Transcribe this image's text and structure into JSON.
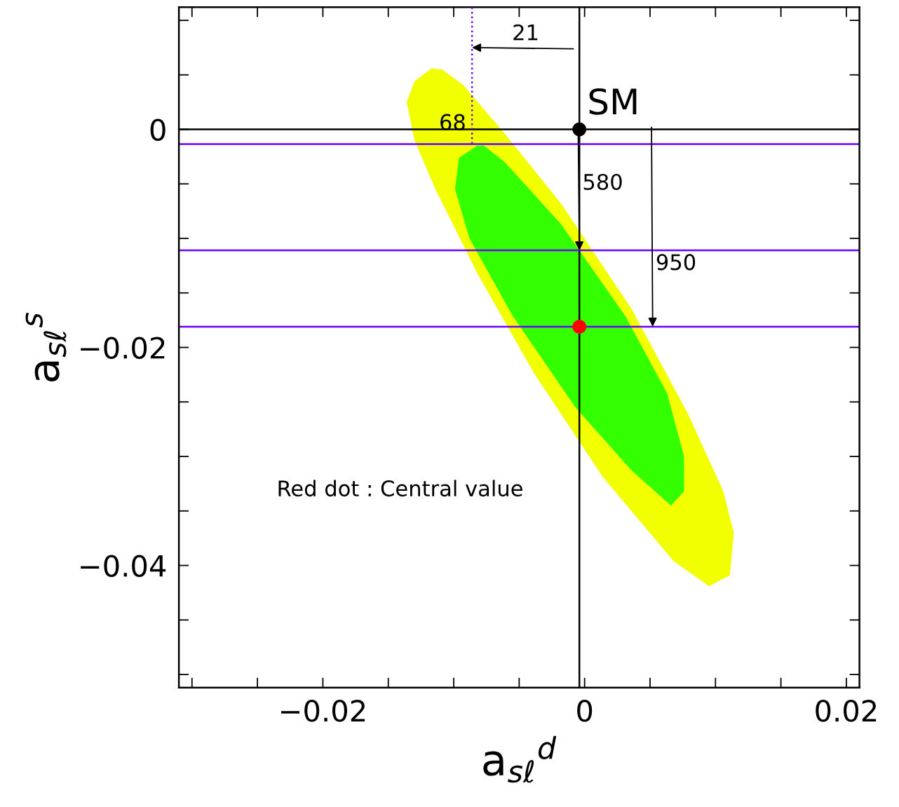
{
  "chart_data": {
    "type": "area",
    "xlabel": "a$_{sℓ}$$^{d}$",
    "ylabel": "a$_{sℓ}$$^{s}$",
    "xlim": [
      -0.031,
      0.021
    ],
    "ylim": [
      -0.0512,
      0.0112
    ],
    "xticks": [
      {
        "value": -0.03,
        "label": null
      },
      {
        "value": -0.025,
        "label": null
      },
      {
        "value": -0.02,
        "label": "−0.02"
      },
      {
        "value": -0.015,
        "label": null
      },
      {
        "value": -0.01,
        "label": null
      },
      {
        "value": -0.005,
        "label": null
      },
      0,
      {
        "value": 0.005,
        "label": null
      },
      {
        "value": 0.01,
        "label": null
      },
      {
        "value": 0.015,
        "label": null
      },
      0.02
    ],
    "yticks": [
      {
        "value": -0.05,
        "label": null
      },
      {
        "value": -0.045,
        "label": null
      },
      {
        "value": -0.04,
        "label": "−0.04"
      },
      {
        "value": -0.035,
        "label": null
      },
      {
        "value": -0.03,
        "label": null
      },
      {
        "value": -0.025,
        "label": null
      },
      {
        "value": -0.02,
        "label": "−0.02"
      },
      {
        "value": -0.015,
        "label": null
      },
      {
        "value": -0.01,
        "label": null
      },
      {
        "value": -0.005,
        "label": null
      },
      0,
      {
        "value": 0.005,
        "label": null
      },
      {
        "value": 0.01,
        "label": null
      }
    ],
    "grid": false,
    "legend": false,
    "series": [
      {
        "color": "#f2ff00",
        "x": [
          -0.0117,
          -0.013,
          -0.0136,
          -0.013,
          -0.0114,
          -0.0082,
          -0.0039,
          0.0014,
          0.0068,
          0.0095,
          0.0111,
          0.0114,
          0.0106,
          0.0079,
          0.0036,
          -0.0018,
          -0.0061,
          -0.0093,
          -0.0109
        ],
        "values": [
          0.0056,
          0.0044,
          0.0025,
          -0.001,
          -0.0055,
          -0.0132,
          -0.0223,
          -0.0319,
          -0.0396,
          -0.0419,
          -0.0409,
          -0.037,
          -0.0332,
          -0.0261,
          -0.0165,
          -0.0068,
          -0.0004,
          0.0041,
          0.0055
        ]
      },
      {
        "color": "#33ff00",
        "x": [
          -0.0082,
          -0.0096,
          -0.0099,
          -0.0088,
          -0.0055,
          -0.0007,
          0.0036,
          0.0066,
          0.0076,
          0.0076,
          0.0063,
          0.0031,
          -0.0018,
          -0.0061,
          -0.0077
        ],
        "values": [
          -0.0015,
          -0.0026,
          -0.0055,
          -0.01,
          -0.0171,
          -0.0255,
          -0.0313,
          -0.0345,
          -0.0332,
          -0.03,
          -0.0242,
          -0.0171,
          -0.0087,
          -0.003,
          -0.0015
        ]
      },
      {
        "type": "line",
        "color": "#6a00ff",
        "line_style": "dotted",
        "x": [
          -0.0086,
          -0.0086
        ],
        "values": [
          0.0112,
          -0.00135
        ]
      },
      {
        "type": "scatter",
        "color": "#000000",
        "marker": "circle",
        "x": [
          -0.0004
        ],
        "values": [
          0
        ]
      },
      {
        "type": "scatter",
        "color": "#ff0000",
        "marker": "circle",
        "x": [
          -0.0004
        ],
        "values": [
          -0.0181
        ]
      }
    ],
    "ref_lines": [
      {
        "axis": "x",
        "value": -0.0004,
        "color": "#000000"
      },
      {
        "axis": "y",
        "value": 0,
        "color": "#000000"
      },
      {
        "axis": "y",
        "value": -0.00135,
        "color": "#6a00ff"
      },
      {
        "axis": "y",
        "value": -0.0111,
        "color": "#6a00ff"
      },
      {
        "axis": "y",
        "value": -0.0181,
        "color": "#6a00ff"
      }
    ],
    "annotations": [
      {
        "text": "SM",
        "x": -0.0004,
        "y": 0
      },
      {
        "text": "21",
        "x": -0.0086,
        "y": 0.0075
      },
      {
        "text": "68",
        "x": -0.0086,
        "y": -0.00135
      },
      {
        "text": "580",
        "x": -0.0004,
        "y": -0.0111
      },
      {
        "text": "950",
        "x": 0.0052,
        "y": -0.0181
      },
      "Red dot : Central value"
    ]
  }
}
